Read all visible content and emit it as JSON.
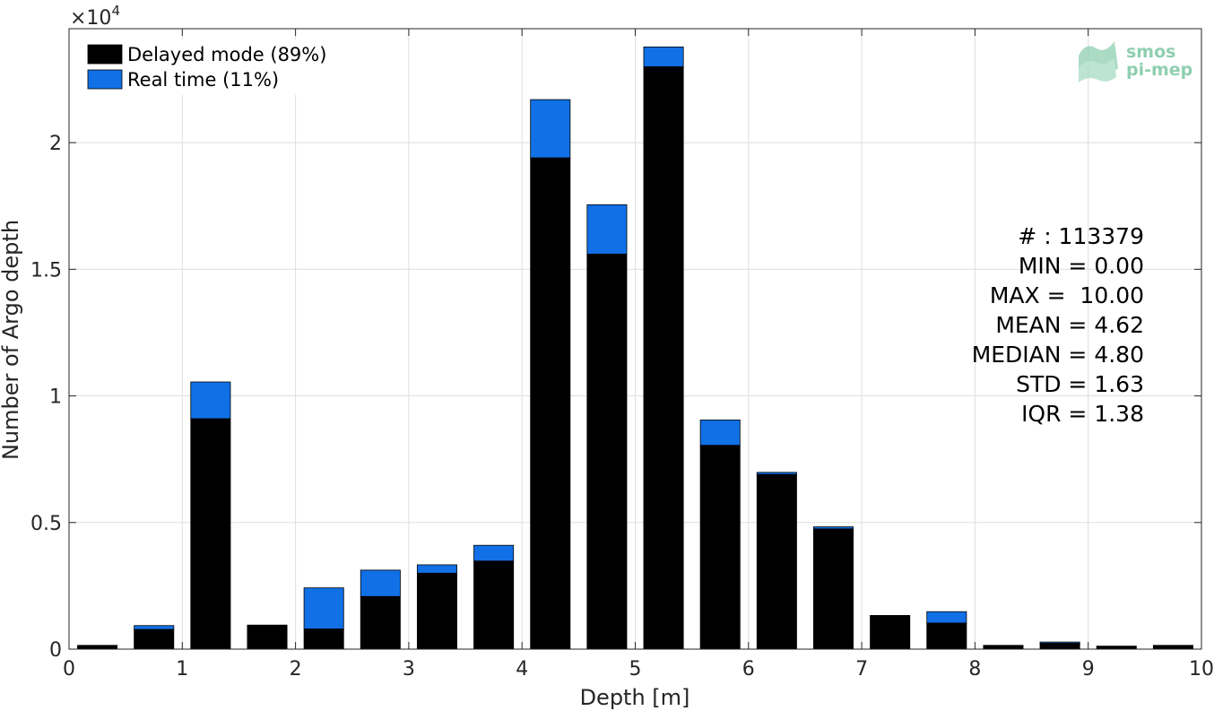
{
  "chart_data": {
    "type": "bar",
    "stacked": true,
    "xlabel": "Depth [m]",
    "ylabel": "Number of Argo depth",
    "y_exponent_label": "×10",
    "y_exponent_power": "4",
    "xlim": [
      0,
      10
    ],
    "ylim": [
      0,
      24500
    ],
    "xticks": [
      0,
      1,
      2,
      3,
      4,
      5,
      6,
      7,
      8,
      9,
      10
    ],
    "yticks": [
      0,
      5000,
      10000,
      15000,
      20000
    ],
    "ytick_labels": [
      "0",
      "0.5",
      "1",
      "1.5",
      "2"
    ],
    "grid": true,
    "legend_position": "top-left",
    "bar_width": 0.35,
    "x": [
      0.25,
      0.75,
      1.25,
      1.75,
      2.25,
      2.75,
      3.25,
      3.75,
      4.25,
      4.75,
      5.25,
      5.75,
      6.25,
      6.75,
      7.25,
      7.75,
      8.25,
      8.75,
      9.25,
      9.75
    ],
    "series": [
      {
        "name": "Delayed mode (89%)",
        "color": "#000000",
        "values": [
          150,
          780,
          9100,
          950,
          800,
          2080,
          3000,
          3480,
          19400,
          15600,
          23000,
          8050,
          6900,
          4750,
          1330,
          1030,
          130,
          230,
          120,
          150
        ]
      },
      {
        "name": "Real time (11%)",
        "color": "#1170e6",
        "values": [
          0,
          150,
          1450,
          0,
          1620,
          1040,
          330,
          620,
          2300,
          1950,
          780,
          1000,
          80,
          80,
          0,
          450,
          20,
          50,
          0,
          0
        ]
      }
    ],
    "stats": [
      "# : 113379",
      "MIN = 0.00",
      "MAX =  10.00",
      "MEAN = 4.62",
      "MEDIAN = 4.80",
      "STD = 1.63",
      "IQR = 1.38"
    ]
  },
  "logo": {
    "line1": "smos",
    "line2": "pi-mep",
    "color": "#8fcfb0"
  }
}
